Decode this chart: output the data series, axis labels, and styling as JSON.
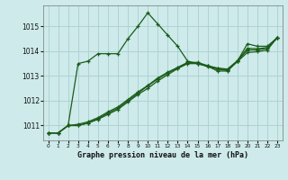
{
  "title": "Graphe pression niveau de la mer (hPa)",
  "bg_color": "#ceeaea",
  "grid_color": "#aacfcf",
  "line_color": "#1a5c1a",
  "xlim": [
    -0.5,
    23.5
  ],
  "ylim": [
    1010.4,
    1015.85
  ],
  "yticks": [
    1011,
    1012,
    1013,
    1014,
    1015
  ],
  "xticks": [
    0,
    1,
    2,
    3,
    4,
    5,
    6,
    7,
    8,
    9,
    10,
    11,
    12,
    13,
    14,
    15,
    16,
    17,
    18,
    19,
    20,
    21,
    22,
    23
  ],
  "series": [
    [
      1010.7,
      1010.7,
      1011.0,
      1013.5,
      1013.6,
      1013.9,
      1013.9,
      1013.9,
      1014.5,
      1015.0,
      1015.55,
      1015.1,
      1014.65,
      1014.2,
      1013.6,
      1013.5,
      1013.4,
      1013.2,
      1013.2,
      1013.6,
      1014.3,
      1014.2,
      1014.2,
      1014.55
    ],
    [
      1010.7,
      1010.7,
      1011.0,
      1011.0,
      1011.1,
      1011.25,
      1011.45,
      1011.65,
      1011.95,
      1012.25,
      1012.5,
      1012.8,
      1013.05,
      1013.3,
      1013.5,
      1013.5,
      1013.38,
      1013.28,
      1013.22,
      1013.58,
      1013.95,
      1013.98,
      1014.05,
      1014.55
    ],
    [
      1010.7,
      1010.7,
      1011.0,
      1011.0,
      1011.1,
      1011.28,
      1011.5,
      1011.7,
      1012.0,
      1012.3,
      1012.6,
      1012.88,
      1013.12,
      1013.32,
      1013.52,
      1013.52,
      1013.4,
      1013.3,
      1013.25,
      1013.6,
      1014.05,
      1014.05,
      1014.12,
      1014.55
    ],
    [
      1010.7,
      1010.7,
      1011.0,
      1011.05,
      1011.15,
      1011.32,
      1011.55,
      1011.75,
      1012.05,
      1012.35,
      1012.62,
      1012.92,
      1013.15,
      1013.35,
      1013.55,
      1013.55,
      1013.42,
      1013.32,
      1013.28,
      1013.62,
      1014.12,
      1014.1,
      1014.15,
      1014.55
    ]
  ]
}
